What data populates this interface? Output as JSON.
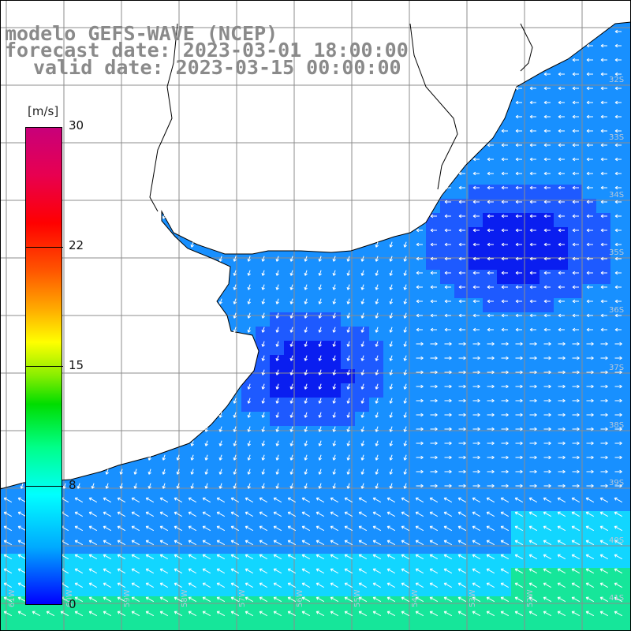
{
  "header": {
    "line1": "modelo GEFS-WAVE (NCEP)",
    "line2": "forecast date: 2023-03-01 18:00:00",
    "line3": "valid date: 2023-03-15 00:00:00"
  },
  "colorbar": {
    "unit": "[m/s]",
    "min": 0,
    "max": 30,
    "ticks": [
      "30",
      "22",
      "15",
      "8",
      "0"
    ],
    "colors": [
      "#0000ff",
      "#00aaff",
      "#00ffff",
      "#00ff88",
      "#00dd00",
      "#ffff00",
      "#ff8800",
      "#ff0000",
      "#c8007a"
    ]
  },
  "map": {
    "ocean_colors": {
      "deep_blue": "#0a1ef0",
      "blue": "#1e5aff",
      "light_blue": "#1890ff",
      "cyan": "#12d6ff",
      "green": "#16e69a"
    },
    "coast_color": "#000000",
    "grid_color": "#8c8c8c",
    "arrow_color": "#ffffff",
    "lat_labels": [
      "32S",
      "33S",
      "34S",
      "35S",
      "36S",
      "37S",
      "38S",
      "39S",
      "40S",
      "41S"
    ],
    "lon_labels": [
      "61W",
      "60W",
      "59W",
      "58W",
      "57W",
      "56W",
      "55W",
      "54W",
      "53W",
      "52W"
    ]
  }
}
